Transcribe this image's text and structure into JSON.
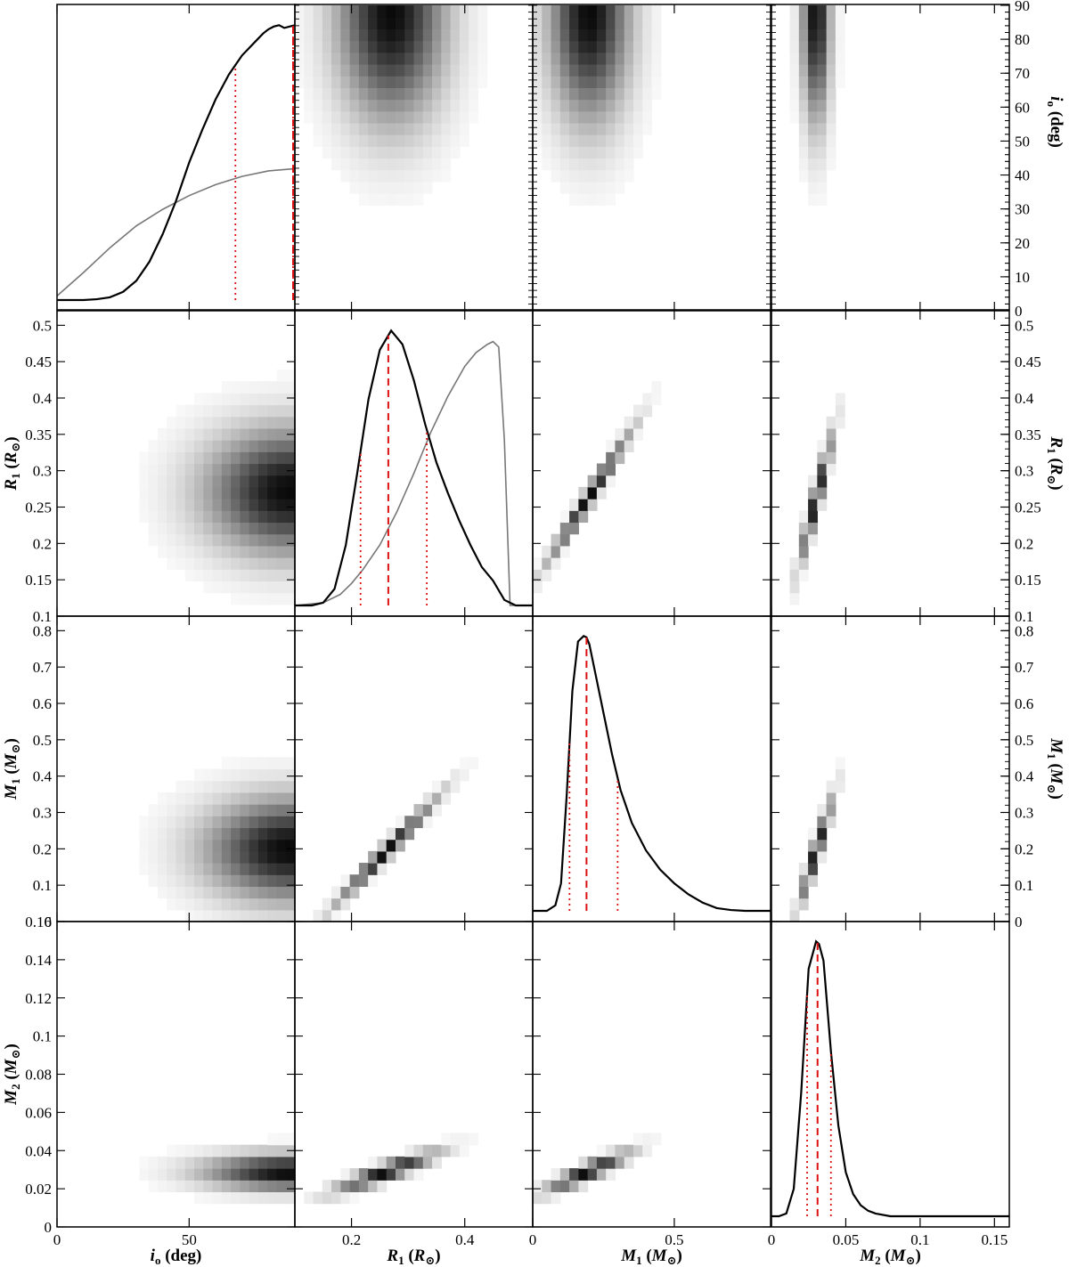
{
  "chart_data": {
    "type": "corner",
    "parameters": [
      {
        "key": "io",
        "xlabel": "i_o (deg)",
        "symbol": "i",
        "sub": "o",
        "unit": "deg",
        "range": [
          0,
          90
        ],
        "x_ticks": [
          0,
          50
        ],
        "right_ticks": [
          0,
          10,
          20,
          30,
          40,
          50,
          60,
          70,
          80,
          90
        ]
      },
      {
        "key": "R1",
        "xlabel": "R_1 (R_⊙)",
        "symbol": "R",
        "sub": "1",
        "unit": "R⊙",
        "range": [
          0.1,
          0.52
        ],
        "x_ticks": [
          0.2,
          0.4
        ],
        "y_ticks": [
          0.1,
          0.15,
          0.2,
          0.25,
          0.3,
          0.35,
          0.4,
          0.45,
          0.5
        ]
      },
      {
        "key": "M1",
        "xlabel": "M_1 (M_⊙)",
        "symbol": "M",
        "sub": "1",
        "unit": "M⊙",
        "range": [
          0,
          0.84
        ],
        "x_ticks": [
          0,
          0.5
        ],
        "y_ticks": [
          0,
          0.1,
          0.2,
          0.3,
          0.4,
          0.5,
          0.6,
          0.7,
          0.8
        ]
      },
      {
        "key": "M2",
        "xlabel": "M_2 (M_⊙)",
        "symbol": "M",
        "sub": "2",
        "unit": "M⊙",
        "range": [
          0,
          0.16
        ],
        "x_ticks": [
          0,
          0.05,
          0.1,
          0.15
        ],
        "y_ticks": [
          0,
          0.02,
          0.04,
          0.06,
          0.08,
          0.1,
          0.12,
          0.14,
          0.16
        ]
      }
    ],
    "tick_labels": {
      "io_x": [
        "0",
        "50"
      ],
      "io_right": [
        "0",
        "10",
        "20",
        "30",
        "40",
        "50",
        "60",
        "70",
        "80",
        "90"
      ],
      "R1_x": [
        "0.2",
        "0.4"
      ],
      "R1_y": [
        "0.1",
        "0.15",
        "0.2",
        "0.25",
        "0.3",
        "0.35",
        "0.4",
        "0.45",
        "0.5"
      ],
      "M1_x": [
        "0",
        "0.5"
      ],
      "M1_y": [
        "0",
        "0.1",
        "0.2",
        "0.3",
        "0.4",
        "0.5",
        "0.6",
        "0.7",
        "0.8"
      ],
      "M2_x": [
        "0",
        "0.05",
        "0.1",
        "0.15"
      ],
      "M2_y": [
        "0",
        "0.02",
        "0.04",
        "0.06",
        "0.08",
        "0.1",
        "0.12",
        "0.14",
        "0.16"
      ]
    },
    "marginals": {
      "io": {
        "posterior": {
          "x": [
            0,
            5,
            10,
            15,
            20,
            25,
            30,
            35,
            40,
            45,
            50,
            55,
            60,
            65,
            70,
            75,
            78,
            80,
            82,
            84,
            86,
            88,
            90
          ],
          "y": [
            0,
            0,
            0,
            0.003,
            0.01,
            0.03,
            0.07,
            0.14,
            0.24,
            0.36,
            0.5,
            0.62,
            0.73,
            0.82,
            0.89,
            0.94,
            0.97,
            0.985,
            0.995,
            1.0,
            0.99,
            0.995,
            1.0
          ]
        },
        "prior": {
          "x": [
            0,
            10,
            20,
            30,
            40,
            50,
            60,
            70,
            80,
            90
          ],
          "y": [
            0.015,
            0.1,
            0.19,
            0.27,
            0.33,
            0.38,
            0.42,
            0.45,
            0.47,
            0.478
          ]
        },
        "median": 90,
        "interval": [
          67.5,
          90
        ]
      },
      "R1": {
        "posterior": {
          "x": [
            0.1,
            0.13,
            0.15,
            0.17,
            0.19,
            0.21,
            0.23,
            0.25,
            0.27,
            0.29,
            0.31,
            0.33,
            0.35,
            0.37,
            0.39,
            0.41,
            0.43,
            0.45,
            0.47,
            0.49,
            0.52
          ],
          "y": [
            0,
            0,
            0.01,
            0.06,
            0.22,
            0.48,
            0.75,
            0.93,
            1.0,
            0.95,
            0.82,
            0.66,
            0.52,
            0.41,
            0.31,
            0.22,
            0.14,
            0.09,
            0.02,
            0,
            0
          ]
        },
        "prior": {
          "x": [
            0.1,
            0.15,
            0.18,
            0.2,
            0.22,
            0.25,
            0.28,
            0.31,
            0.34,
            0.37,
            0.4,
            0.42,
            0.44,
            0.45,
            0.46,
            0.47,
            0.48,
            0.52
          ],
          "y": [
            0,
            0.01,
            0.04,
            0.08,
            0.13,
            0.22,
            0.34,
            0.48,
            0.63,
            0.76,
            0.87,
            0.92,
            0.95,
            0.96,
            0.94,
            0.6,
            0,
            0
          ]
        },
        "median": 0.265,
        "interval": [
          0.216,
          0.333
        ]
      },
      "M1": {
        "posterior": {
          "x": [
            0,
            0.05,
            0.08,
            0.1,
            0.12,
            0.14,
            0.16,
            0.18,
            0.19,
            0.2,
            0.22,
            0.25,
            0.28,
            0.31,
            0.35,
            0.4,
            0.45,
            0.5,
            0.55,
            0.6,
            0.65,
            0.7,
            0.75,
            0.84
          ],
          "y": [
            0,
            0,
            0.02,
            0.1,
            0.42,
            0.8,
            0.98,
            1.0,
            0.995,
            0.97,
            0.87,
            0.72,
            0.57,
            0.44,
            0.32,
            0.22,
            0.15,
            0.1,
            0.06,
            0.03,
            0.01,
            0.003,
            0,
            0
          ]
        },
        "median": 0.19,
        "interval": [
          0.13,
          0.3
        ]
      },
      "M2": {
        "posterior": {
          "x": [
            0,
            0.005,
            0.01,
            0.015,
            0.02,
            0.025,
            0.03,
            0.032,
            0.035,
            0.04,
            0.045,
            0.05,
            0.055,
            0.06,
            0.065,
            0.07,
            0.08,
            0.1,
            0.12,
            0.16
          ],
          "y": [
            0,
            0,
            0.01,
            0.1,
            0.45,
            0.9,
            1.0,
            0.99,
            0.93,
            0.6,
            0.33,
            0.16,
            0.08,
            0.04,
            0.02,
            0.01,
            0,
            0,
            0,
            0
          ]
        },
        "median": 0.031,
        "interval": [
          0.024,
          0.04
        ]
      }
    },
    "joint_densities": [
      {
        "x": "io",
        "y": "R1",
        "mean": [
          88,
          0.272
        ],
        "sd": [
          20,
          0.055
        ],
        "rho": 0,
        "xfloor": 25
      },
      {
        "x": "io",
        "y": "M1",
        "mean": [
          88,
          0.2
        ],
        "sd": [
          20,
          0.09
        ],
        "rho": 0,
        "xfloor": 25
      },
      {
        "x": "io",
        "y": "M2",
        "mean": [
          88,
          0.029
        ],
        "sd": [
          20,
          0.006
        ],
        "rho": 0,
        "xfloor": 25
      },
      {
        "x": "R1",
        "y": "io",
        "mean": [
          0.27,
          88
        ],
        "sd": [
          0.06,
          20
        ],
        "rho": 0,
        "yfloor": 25
      },
      {
        "x": "M1",
        "y": "io",
        "mean": [
          0.2,
          88
        ],
        "sd": [
          0.09,
          20
        ],
        "rho": 0,
        "yfloor": 25
      },
      {
        "x": "M2",
        "y": "io",
        "mean": [
          0.03,
          88
        ],
        "sd": [
          0.006,
          20
        ],
        "rho": 0,
        "yfloor": 25
      },
      {
        "x": "M1",
        "y": "R1",
        "mean": [
          0.2,
          0.265
        ],
        "sd": [
          0.09,
          0.055
        ],
        "rho": 0.985
      },
      {
        "x": "M2",
        "y": "R1",
        "mean": [
          0.03,
          0.262
        ],
        "sd": [
          0.007,
          0.055
        ],
        "rho": 0.95
      },
      {
        "x": "R1",
        "y": "M1",
        "mean": [
          0.262,
          0.195
        ],
        "sd": [
          0.055,
          0.09
        ],
        "rho": 0.985
      },
      {
        "x": "M2",
        "y": "M1",
        "mean": [
          0.03,
          0.195
        ],
        "sd": [
          0.007,
          0.09
        ],
        "rho": 0.95
      },
      {
        "x": "R1",
        "y": "M2",
        "mean": [
          0.262,
          0.029
        ],
        "sd": [
          0.055,
          0.0065
        ],
        "rho": 0.9
      },
      {
        "x": "M1",
        "y": "M2",
        "mean": [
          0.195,
          0.029
        ],
        "sd": [
          0.09,
          0.0065
        ],
        "rho": 0.9
      }
    ],
    "colors": {
      "posterior": "#000000",
      "prior": "#777777",
      "median": "#dd1111",
      "interval": "#dd1111",
      "density": "#000000"
    },
    "grid": false
  }
}
